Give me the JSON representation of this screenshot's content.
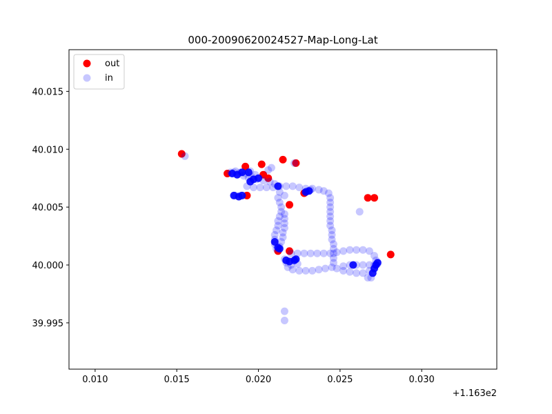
{
  "chart_data": {
    "type": "scatter",
    "title": "000-20090620024527-Map-Long-Lat",
    "xlabel": "",
    "ylabel": "",
    "x_offset_label": "+1.163e2",
    "xlim": [
      0.0084,
      0.0346
    ],
    "ylim": [
      39.991,
      40.0186
    ],
    "x_ticks": [
      0.01,
      0.015,
      0.02,
      0.025,
      0.03
    ],
    "x_tick_labels": [
      "0.010",
      "0.015",
      "0.020",
      "0.025",
      "0.030"
    ],
    "y_ticks": [
      39.995,
      40.0,
      40.005,
      40.01,
      40.015
    ],
    "y_tick_labels": [
      "39.995",
      "40.000",
      "40.005",
      "40.010",
      "40.015"
    ],
    "grid": false,
    "legend": {
      "position": "top-left",
      "entries": [
        "out",
        "in"
      ]
    },
    "series": [
      {
        "name": "out",
        "color": "#ff0000",
        "alpha": 1.0,
        "points": [
          [
            0.0153,
            40.0096
          ],
          [
            0.0181,
            40.0079
          ],
          [
            0.0192,
            40.0085
          ],
          [
            0.0202,
            40.0087
          ],
          [
            0.0215,
            40.0091
          ],
          [
            0.0223,
            40.0088
          ],
          [
            0.0203,
            40.0078
          ],
          [
            0.0206,
            40.0075
          ],
          [
            0.0193,
            40.006
          ],
          [
            0.0219,
            40.0052
          ],
          [
            0.0228,
            40.0062
          ],
          [
            0.0267,
            40.0058
          ],
          [
            0.0271,
            40.0058
          ],
          [
            0.0281,
            40.0009
          ],
          [
            0.0212,
            40.0012
          ],
          [
            0.0219,
            40.0012
          ]
        ]
      },
      {
        "name": "in",
        "color": "#0000ff",
        "alpha": 0.22,
        "points": [
          [
            0.0155,
            40.0094
          ],
          [
            0.0183,
            40.008
          ],
          [
            0.0186,
            40.0081
          ],
          [
            0.0189,
            40.008
          ],
          [
            0.0192,
            40.0079
          ],
          [
            0.0195,
            40.0081
          ],
          [
            0.0198,
            40.0078
          ],
          [
            0.0196,
            40.0076
          ],
          [
            0.0199,
            40.0074
          ],
          [
            0.0203,
            40.0073
          ],
          [
            0.0207,
            40.0072
          ],
          [
            0.021,
            40.007
          ],
          [
            0.0193,
            40.0068
          ],
          [
            0.0197,
            40.0067
          ],
          [
            0.0201,
            40.0067
          ],
          [
            0.0205,
            40.0067
          ],
          [
            0.0209,
            40.0067
          ],
          [
            0.0213,
            40.0068
          ],
          [
            0.0217,
            40.0068
          ],
          [
            0.0221,
            40.0068
          ],
          [
            0.0225,
            40.0067
          ],
          [
            0.0229,
            40.0066
          ],
          [
            0.0233,
            40.0066
          ],
          [
            0.0237,
            40.0065
          ],
          [
            0.024,
            40.0064
          ],
          [
            0.0243,
            40.0062
          ],
          [
            0.0244,
            40.0058
          ],
          [
            0.0244,
            40.0054
          ],
          [
            0.0244,
            40.005
          ],
          [
            0.0244,
            40.0046
          ],
          [
            0.0244,
            40.0042
          ],
          [
            0.0244,
            40.0038
          ],
          [
            0.0244,
            40.0034
          ],
          [
            0.0245,
            40.003
          ],
          [
            0.0245,
            40.0026
          ],
          [
            0.0245,
            40.0022
          ],
          [
            0.0246,
            40.0018
          ],
          [
            0.0246,
            40.0014
          ],
          [
            0.0246,
            40.001
          ],
          [
            0.0246,
            40.0006
          ],
          [
            0.0246,
            40.0002
          ],
          [
            0.0245,
            39.9998
          ],
          [
            0.0241,
            39.9997
          ],
          [
            0.0237,
            39.9996
          ],
          [
            0.0233,
            39.9995
          ],
          [
            0.0229,
            39.9995
          ],
          [
            0.0225,
            39.9995
          ],
          [
            0.0221,
            39.9996
          ],
          [
            0.0218,
            39.9998
          ],
          [
            0.0217,
            40.0002
          ],
          [
            0.0216,
            40.0005
          ],
          [
            0.022,
            40.001
          ],
          [
            0.0224,
            40.001
          ],
          [
            0.0228,
            40.001
          ],
          [
            0.0232,
            40.001
          ],
          [
            0.0236,
            40.001
          ],
          [
            0.024,
            40.001
          ],
          [
            0.0244,
            40.001
          ],
          [
            0.0248,
            40.0011
          ],
          [
            0.0252,
            40.0012
          ],
          [
            0.0256,
            40.0013
          ],
          [
            0.026,
            40.0013
          ],
          [
            0.0264,
            40.0013
          ],
          [
            0.0268,
            40.0012
          ],
          [
            0.0271,
            40.0008
          ],
          [
            0.0272,
            40.0004
          ],
          [
            0.0271,
            40.0
          ],
          [
            0.0268,
            39.9995
          ],
          [
            0.0264,
            39.9993
          ],
          [
            0.026,
            39.9993
          ],
          [
            0.0256,
            39.9994
          ],
          [
            0.0252,
            39.9995
          ],
          [
            0.0248,
            39.9997
          ],
          [
            0.0252,
            39.9999
          ],
          [
            0.0256,
            40.0
          ],
          [
            0.026,
            40.0
          ],
          [
            0.0264,
            40.0
          ],
          [
            0.0268,
            40.0
          ],
          [
            0.0272,
            40.0
          ],
          [
            0.0267,
            39.9989
          ],
          [
            0.0269,
            39.9989
          ],
          [
            0.0262,
            40.0046
          ],
          [
            0.0213,
            40.0063
          ],
          [
            0.0212,
            40.0058
          ],
          [
            0.0213,
            40.0054
          ],
          [
            0.0214,
            40.005
          ],
          [
            0.0214,
            40.0046
          ],
          [
            0.0213,
            40.0042
          ],
          [
            0.0212,
            40.0038
          ],
          [
            0.0212,
            40.0034
          ],
          [
            0.0211,
            40.003
          ],
          [
            0.021,
            40.0026
          ],
          [
            0.021,
            40.0022
          ],
          [
            0.021,
            40.0018
          ],
          [
            0.0211,
            40.0014
          ],
          [
            0.0213,
            40.0016
          ],
          [
            0.0214,
            40.002
          ],
          [
            0.0215,
            40.0024
          ],
          [
            0.0215,
            40.0028
          ],
          [
            0.0216,
            40.0032
          ],
          [
            0.0216,
            40.0036
          ],
          [
            0.0216,
            40.004
          ],
          [
            0.0216,
            40.0044
          ],
          [
            0.0216,
            40.006
          ],
          [
            0.0208,
            40.0084
          ],
          [
            0.0206,
            40.0082
          ],
          [
            0.0216,
            39.996
          ],
          [
            0.0216,
            39.9952
          ],
          [
            0.0185,
            40.008
          ],
          [
            0.0188,
            40.0079
          ],
          [
            0.0191,
            40.0077
          ],
          [
            0.0194,
            40.0075
          ],
          [
            0.0186,
            40.006
          ],
          [
            0.0189,
            40.006
          ],
          [
            0.0222,
            40.0088
          ],
          [
            0.023,
            40.0064
          ],
          [
            0.0232,
            40.0065
          ],
          [
            0.022,
            40.0
          ],
          [
            0.0224,
            40.0001
          ],
          [
            0.0273,
            40.0001
          ]
        ]
      },
      {
        "name": "in",
        "color": "#0000ff",
        "alpha": 0.9,
        "points": [
          [
            0.0184,
            40.0079
          ],
          [
            0.0187,
            40.0078
          ],
          [
            0.019,
            40.008
          ],
          [
            0.0194,
            40.008
          ],
          [
            0.0197,
            40.0074
          ],
          [
            0.02,
            40.0075
          ],
          [
            0.0185,
            40.006
          ],
          [
            0.0188,
            40.0059
          ],
          [
            0.019,
            40.006
          ],
          [
            0.0212,
            40.0068
          ],
          [
            0.0229,
            40.0063
          ],
          [
            0.0231,
            40.0064
          ],
          [
            0.021,
            40.002
          ],
          [
            0.0212,
            40.0015
          ],
          [
            0.0213,
            40.0014
          ],
          [
            0.0217,
            40.0004
          ],
          [
            0.0219,
            40.0003
          ],
          [
            0.0222,
            40.0004
          ],
          [
            0.0223,
            40.0005
          ],
          [
            0.0258,
            40.0
          ],
          [
            0.0271,
            39.9997
          ],
          [
            0.0272,
            40.0
          ],
          [
            0.0273,
            40.0002
          ],
          [
            0.027,
            39.9993
          ],
          [
            0.0195,
            40.0072
          ]
        ]
      }
    ]
  }
}
